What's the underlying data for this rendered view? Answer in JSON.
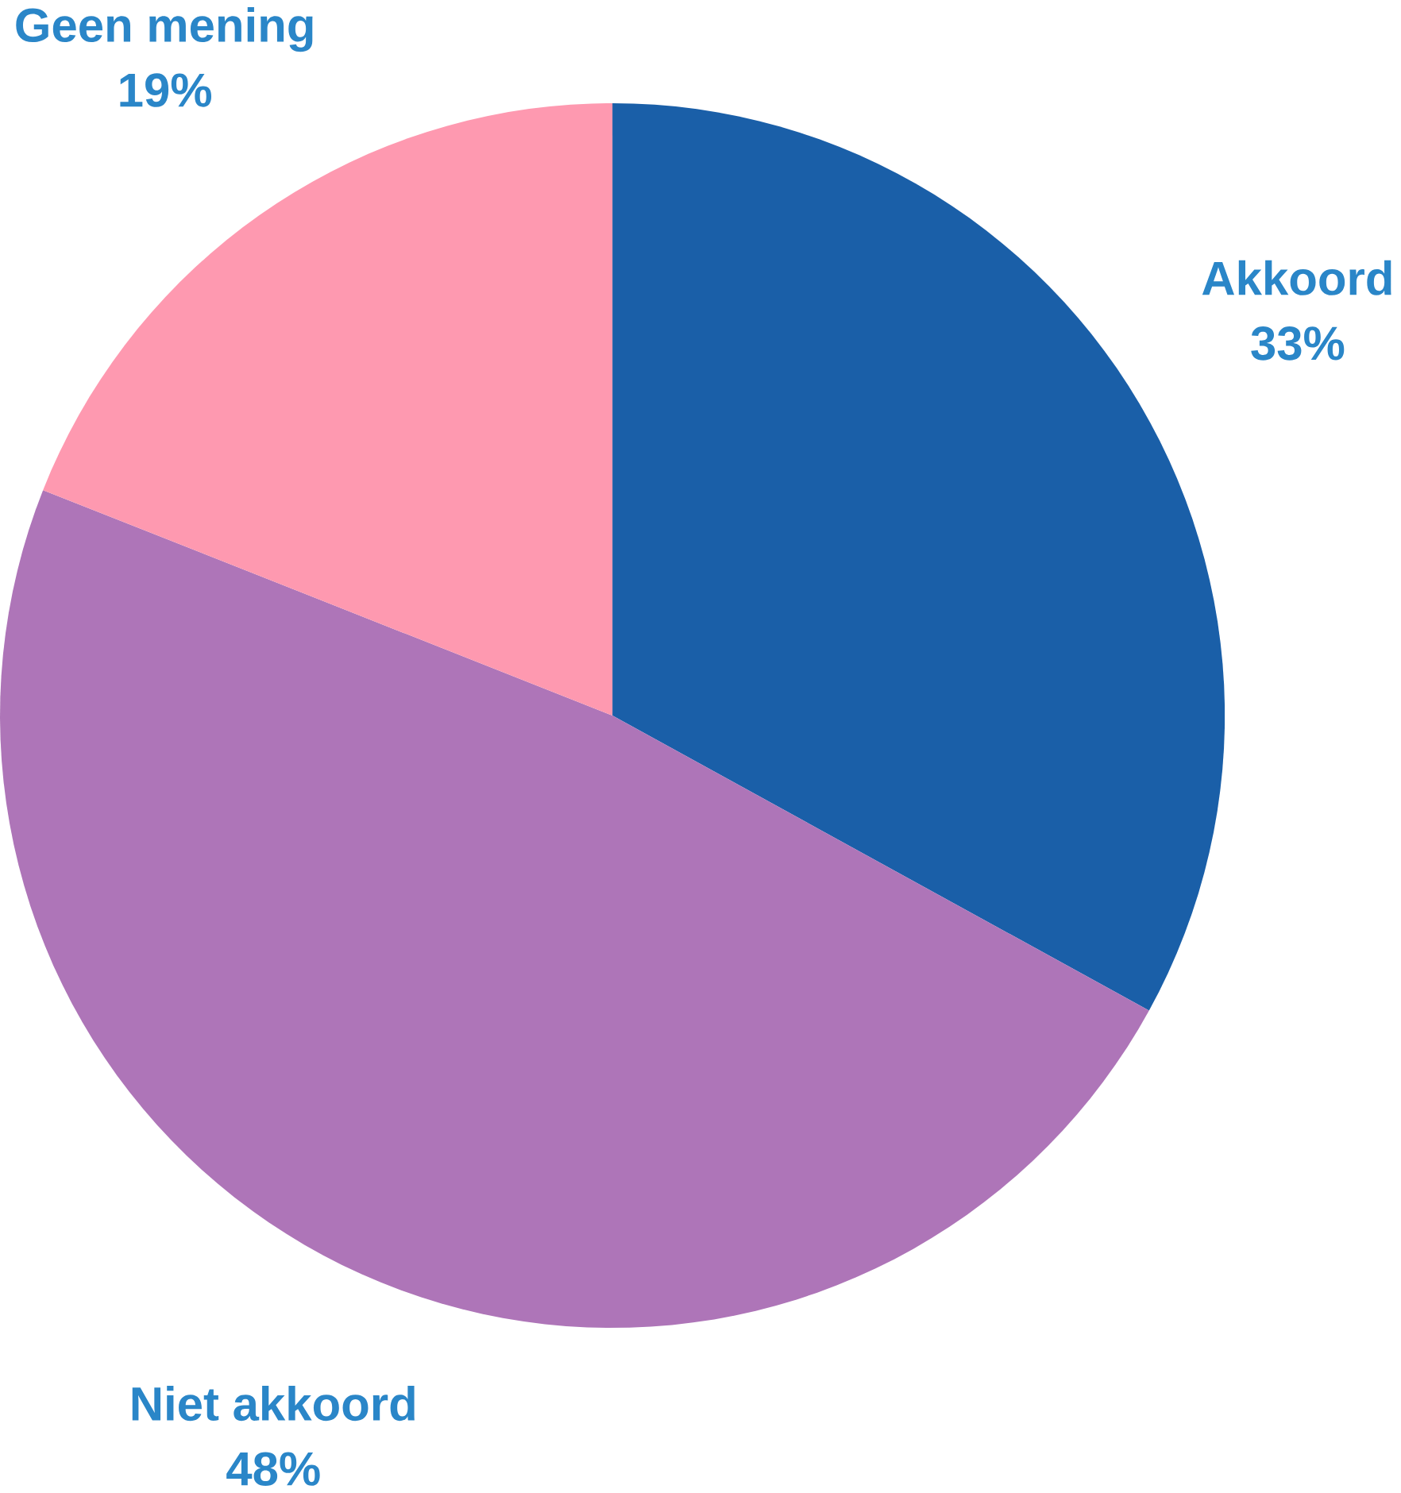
{
  "chart_data": {
    "type": "pie",
    "categories": [
      "Akkoord",
      "Niet akkoord",
      "Geen mening"
    ],
    "values": [
      33,
      48,
      19
    ],
    "colors": [
      "#1a5fa8",
      "#ae75b8",
      "#fe99b0"
    ],
    "value_labels": [
      "33%",
      "48%",
      "19%"
    ]
  }
}
